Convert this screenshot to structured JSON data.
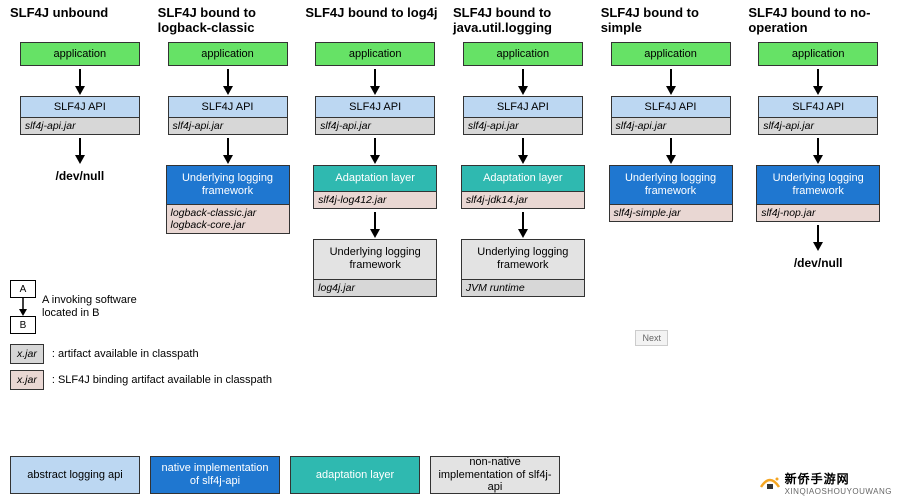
{
  "colors": {
    "application": "#66e266",
    "api_box": "#bcd7f2",
    "jar_gray": "#d7d7d7",
    "jar_pink": "#e9d7d3",
    "blue_fw": "#1f77d0",
    "teal_fw": "#2fb9b0",
    "gray_fw": "#e3e3e3",
    "border": "#333333",
    "background": "#ffffff"
  },
  "fonts": {
    "family": "Arial",
    "title_pt": 13,
    "body_pt": 11,
    "jar_pt": 10.5
  },
  "columns": [
    {
      "title": "SLF4J unbound",
      "app": "application",
      "api": "SLF4J API",
      "api_jar": "slf4j-api.jar",
      "terminal": "/dev/null"
    },
    {
      "title": "SLF4J bound to logback-classic",
      "app": "application",
      "api": "SLF4J API",
      "api_jar": "slf4j-api.jar",
      "fw": {
        "style": "blue",
        "label": "Underlying logging framework",
        "jar": "logback-classic.jar logback-core.jar"
      }
    },
    {
      "title": "SLF4J bound to log4j",
      "app": "application",
      "api": "SLF4J API",
      "api_jar": "slf4j-api.jar",
      "adapt": {
        "style": "teal",
        "label": "Adaptation layer",
        "jar": "slf4j-log412.jar"
      },
      "fw": {
        "style": "gray",
        "label": "Underlying logging framework",
        "jar": "log4j.jar"
      }
    },
    {
      "title": "SLF4J bound to java.util.logging",
      "app": "application",
      "api": "SLF4J API",
      "api_jar": "slf4j-api.jar",
      "adapt": {
        "style": "teal",
        "label": "Adaptation layer",
        "jar": "slf4j-jdk14.jar"
      },
      "fw": {
        "style": "gray",
        "label": "Underlying logging framework",
        "jar": "JVM runtime"
      }
    },
    {
      "title": "SLF4J bound to simple",
      "app": "application",
      "api": "SLF4J API",
      "api_jar": "slf4j-api.jar",
      "fw": {
        "style": "blue",
        "label": "Underlying logging framework",
        "jar": "slf4j-simple.jar"
      }
    },
    {
      "title": "SLF4J bound to no-operation",
      "app": "application",
      "api": "SLF4J API",
      "api_jar": "slf4j-api.jar",
      "fw": {
        "style": "blue",
        "label": "Underlying logging framework",
        "jar": "slf4j-nop.jar"
      },
      "terminal": "/dev/null"
    }
  ],
  "legend": {
    "ab": {
      "a": "A",
      "b": "B",
      "text": "A invoking software located in B"
    },
    "jar_gray": {
      "chip": "x.jar",
      "text": ": artifact available in classpath"
    },
    "jar_pink": {
      "chip": "x.jar",
      "text": ": SLF4J binding artifact available in classpath"
    },
    "swatches": [
      {
        "style": "sw-blue",
        "label": "abstract logging api"
      },
      {
        "style": "sw-dblue",
        "label": "native implementation of slf4j-api"
      },
      {
        "style": "sw-teal",
        "label": "adaptation layer"
      },
      {
        "style": "sw-gray",
        "label": "non-native implementation of slf4j-api"
      }
    ]
  },
  "next_button": "Next",
  "watermark": {
    "cn": "新侨手游网",
    "url": "XINQIAOSHOUYOUWANG"
  }
}
